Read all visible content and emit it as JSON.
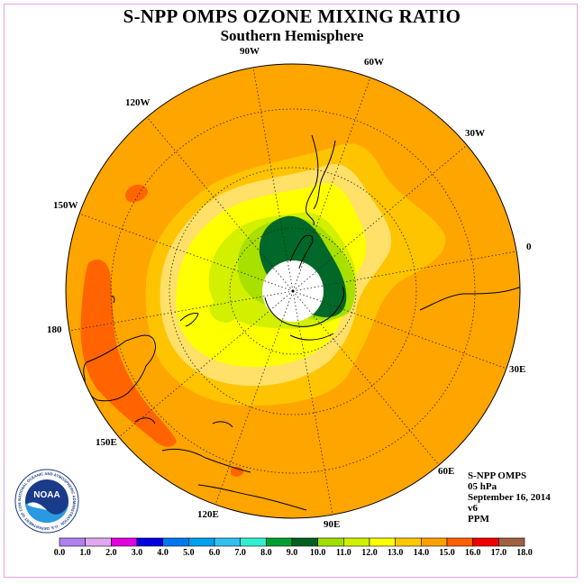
{
  "title": "S-NPP OMPS OZONE MIXING RATIO",
  "subtitle": "Southern Hemisphere",
  "longitude_labels": {
    "w90": "90W",
    "w60": "60W",
    "w30": "30W",
    "lon0": "0",
    "e30": "30E",
    "e60": "60E",
    "e90": "90E",
    "e120": "120E",
    "e150": "150E",
    "lon180": "180",
    "w150": "150W",
    "w120": "120W"
  },
  "info": {
    "instrument": "S-NPP OMPS",
    "level": "05 hPa",
    "date": "September 16, 2014",
    "version": "v6",
    "units": "PPM"
  },
  "logo": {
    "text": "NOAA",
    "ring_text": "NATIONAL OCEANIC AND ATMOSPHERIC ADMINISTRATION · U.S. DEPARTMENT OF COMMERCE"
  },
  "colorbar": {
    "ticks": [
      "0.0",
      "1.0",
      "2.0",
      "3.0",
      "4.0",
      "5.0",
      "6.0",
      "7.0",
      "8.0",
      "9.0",
      "10.0",
      "11.0",
      "12.0",
      "13.0",
      "14.0",
      "15.0",
      "16.0",
      "17.0",
      "18.0"
    ],
    "colors": [
      "#b080f0",
      "#e0a8f0",
      "#e000e0",
      "#0000e0",
      "#0078f0",
      "#00a0f0",
      "#30c0f0",
      "#30f0d0",
      "#00a030",
      "#006020",
      "#a0e000",
      "#d0f000",
      "#ffff00",
      "#ffc800",
      "#ffa000",
      "#ff6000",
      "#f00000",
      "#a06040"
    ]
  },
  "map_colors": {
    "background": "#ffa500",
    "dark_orange": "#ff6400",
    "light_orange": "#ffc400",
    "pale_yellow": "#ffe068",
    "yellow": "#ffff00",
    "yellow_green": "#d2f000",
    "light_green": "#a8e000",
    "dark_green": "#006828"
  }
}
